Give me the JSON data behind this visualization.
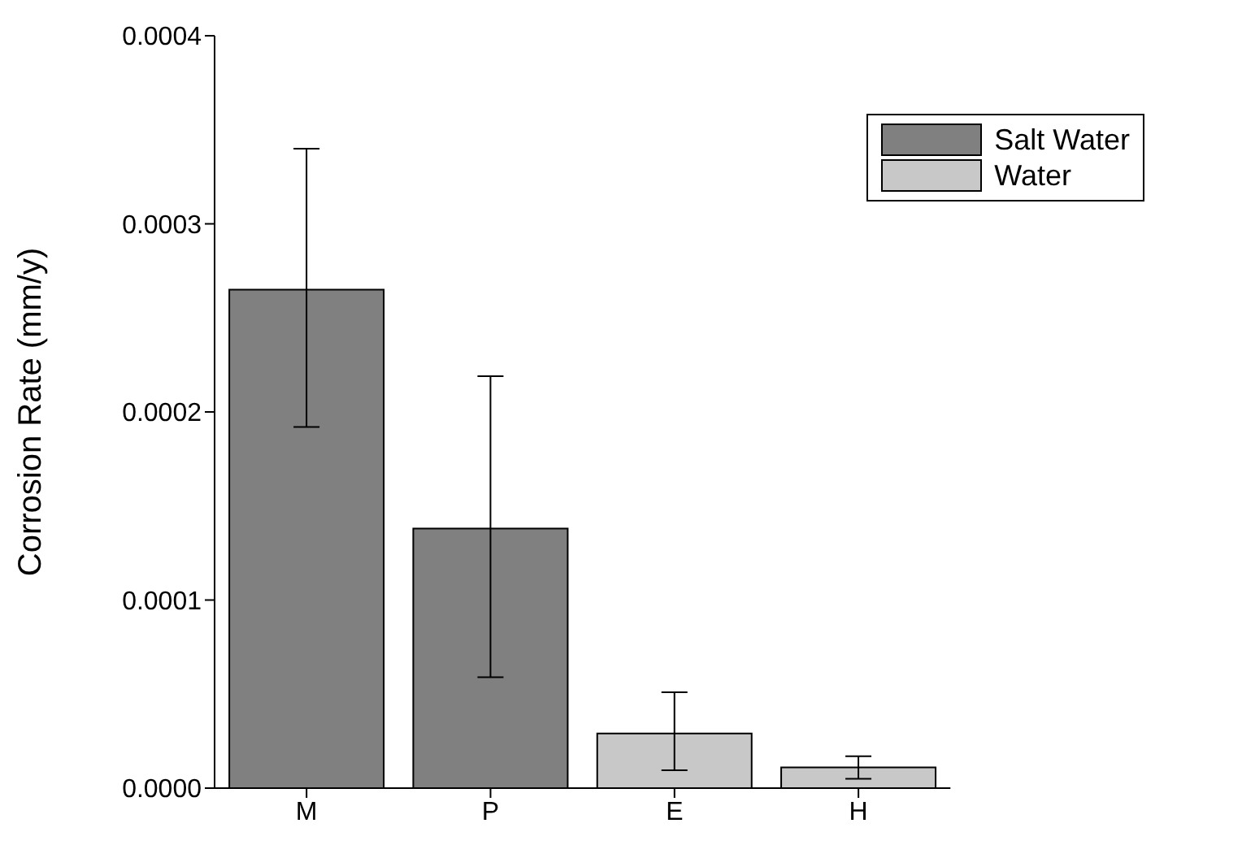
{
  "chart_data": {
    "type": "bar",
    "ylabel": "Corrosion Rate (mm/y)",
    "categories": [
      "M",
      "P",
      "E",
      "H"
    ],
    "stacked": true,
    "series": [
      {
        "name": "Salt Water",
        "color": "#808080",
        "values": [
          0.000265,
          0.000138,
          null,
          null
        ],
        "errors": [
          [
            0.000192,
            0.00034
          ],
          [
            5.9e-05,
            0.000219
          ],
          null,
          null
        ]
      },
      {
        "name": "Water",
        "color": "#c8c8c8",
        "values": [
          null,
          null,
          2.9e-05,
          1.1e-05
        ],
        "errors": [
          null,
          null,
          [
            9.5e-06,
            5.1e-05
          ],
          [
            5e-06,
            1.7e-05
          ]
        ]
      }
    ],
    "ylim": [
      0,
      0.0004
    ],
    "yticks": [
      {
        "value": 0,
        "label": "0.0000"
      },
      {
        "value": 0.0001,
        "label": "0.0001"
      },
      {
        "value": 0.0002,
        "label": "0.0002"
      },
      {
        "value": 0.0003,
        "label": "0.0003"
      },
      {
        "value": 0.0004,
        "label": "0.0004"
      }
    ],
    "grid": false,
    "legend": "top right"
  }
}
